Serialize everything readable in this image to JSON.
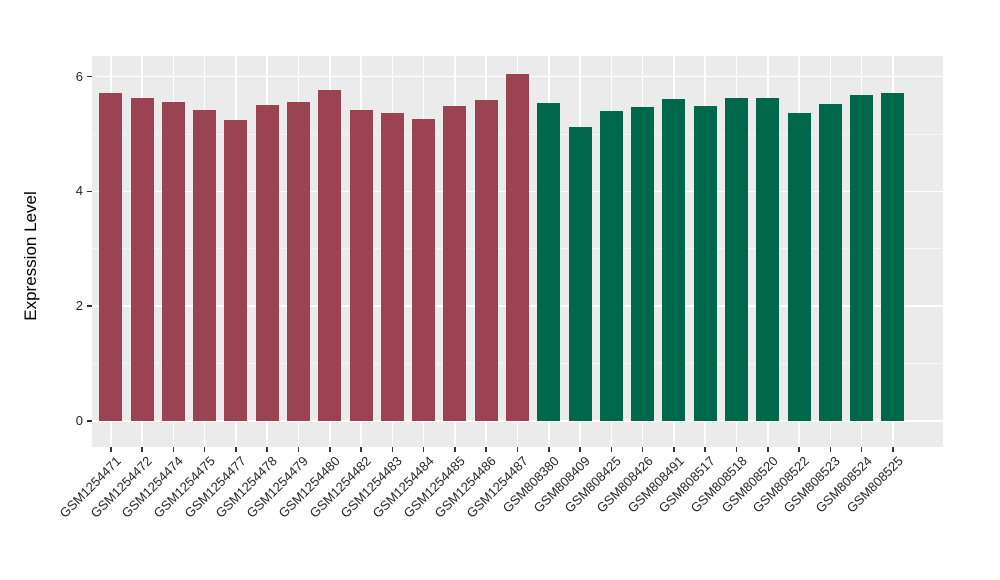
{
  "figure": {
    "background": "#FFFFFF",
    "panel_background": "#EBEBEB",
    "grid_color": "#FFFFFF",
    "tick_mark_color": "#333333",
    "axis_text_color": "#262626",
    "group_colors": {
      "gsm125_group": "#9B4253",
      "gsm808_group": "#00684A"
    }
  },
  "chart_data": {
    "type": "bar",
    "title": "",
    "xlabel": "",
    "ylabel": "Expression Level",
    "ylim": [
      0,
      6.36
    ],
    "yticks": [
      0,
      2,
      4,
      6
    ],
    "ytick_labels": [
      "0",
      "2",
      "4",
      "6"
    ],
    "yticks_minor": [
      1,
      3,
      5
    ],
    "grid": "major and minor horizontal white gridlines, vertical white gridlines at each category",
    "legend_position": "none",
    "categories": [
      "GSM1254471",
      "GSM1254472",
      "GSM1254474",
      "GSM1254475",
      "GSM1254477",
      "GSM1254478",
      "GSM1254479",
      "GSM1254480",
      "GSM1254482",
      "GSM1254483",
      "GSM1254484",
      "GSM1254485",
      "GSM1254486",
      "GSM1254487",
      "GSM808380",
      "GSM808409",
      "GSM808425",
      "GSM808426",
      "GSM808491",
      "GSM808517",
      "GSM808518",
      "GSM808520",
      "GSM808522",
      "GSM808523",
      "GSM808524",
      "GSM808525"
    ],
    "values": [
      5.72,
      5.62,
      5.56,
      5.42,
      5.25,
      5.51,
      5.55,
      5.77,
      5.42,
      5.37,
      5.27,
      5.49,
      5.6,
      6.04,
      5.54,
      5.12,
      5.4,
      5.47,
      5.61,
      5.49,
      5.62,
      5.63,
      5.36,
      5.53,
      5.68,
      5.72
    ],
    "colors": [
      "#9B4253",
      "#9B4253",
      "#9B4253",
      "#9B4253",
      "#9B4253",
      "#9B4253",
      "#9B4253",
      "#9B4253",
      "#9B4253",
      "#9B4253",
      "#9B4253",
      "#9B4253",
      "#9B4253",
      "#9B4253",
      "#00684A",
      "#00684A",
      "#00684A",
      "#00684A",
      "#00684A",
      "#00684A",
      "#00684A",
      "#00684A",
      "#00684A",
      "#00684A",
      "#00684A",
      "#00684A"
    ]
  }
}
